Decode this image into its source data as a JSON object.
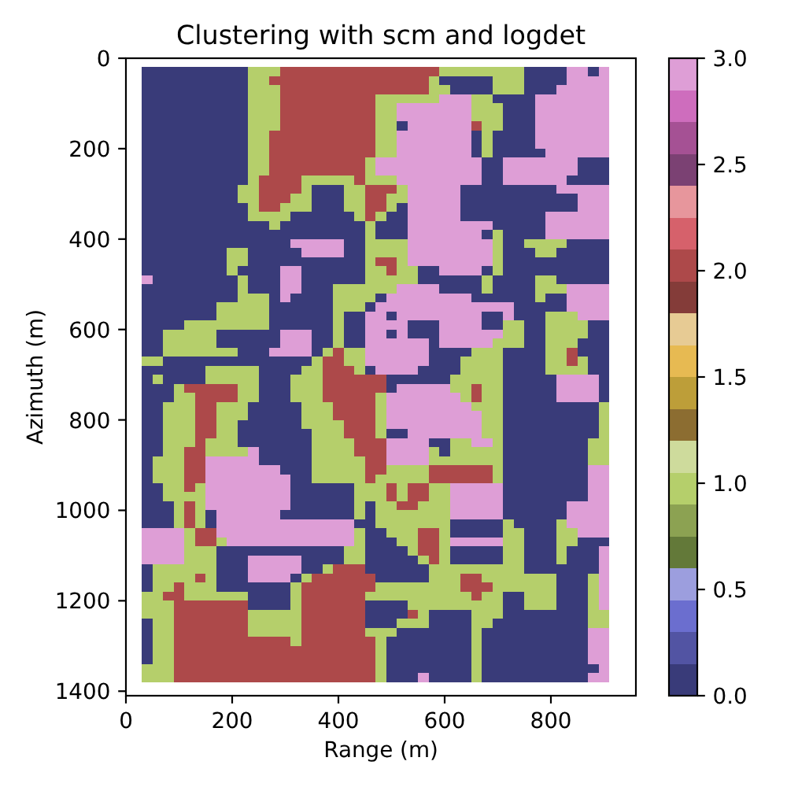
{
  "chart_data": {
    "type": "heatmap",
    "title": "Clustering with scm and logdet",
    "xlabel": "Range (m)",
    "ylabel": "Azimuth (m)",
    "x": [
      40,
      60,
      80,
      100,
      120,
      140,
      160,
      180,
      200,
      220,
      240,
      260,
      280,
      300,
      320,
      340,
      360,
      380,
      400,
      420,
      440,
      460,
      480,
      500,
      520,
      540,
      560,
      580,
      600,
      620,
      640,
      660,
      680,
      700,
      720,
      740,
      760,
      780,
      800,
      820,
      840,
      860,
      880,
      900
    ],
    "y": [
      30,
      50,
      70,
      90,
      110,
      130,
      150,
      170,
      190,
      210,
      230,
      250,
      270,
      290,
      310,
      330,
      350,
      370,
      390,
      410,
      430,
      450,
      470,
      490,
      510,
      530,
      550,
      570,
      590,
      610,
      630,
      650,
      670,
      690,
      710,
      730,
      750,
      770,
      790,
      810,
      830,
      850,
      870,
      890,
      910,
      930,
      950,
      970,
      990,
      1010,
      1030,
      1050,
      1070,
      1090,
      1110,
      1130,
      1150,
      1170,
      1190,
      1210,
      1230,
      1250,
      1270,
      1290,
      1310,
      1330,
      1350,
      1370
    ],
    "cells": [
      [
        0,
        0,
        0,
        0,
        0,
        0,
        0,
        0,
        0,
        0,
        1,
        1,
        1,
        2,
        2,
        2,
        2,
        2,
        2,
        2,
        2,
        2,
        2,
        2,
        2,
        2,
        2,
        2,
        1,
        1,
        1,
        1,
        1,
        1,
        1,
        1,
        0,
        0,
        0,
        0,
        3,
        3,
        0,
        3
      ],
      [
        0,
        0,
        0,
        0,
        0,
        0,
        0,
        0,
        0,
        0,
        1,
        1,
        2,
        2,
        2,
        2,
        2,
        2,
        2,
        2,
        2,
        2,
        2,
        2,
        2,
        2,
        2,
        1,
        0,
        0,
        0,
        0,
        0,
        1,
        1,
        1,
        0,
        0,
        0,
        0,
        3,
        3,
        3,
        3
      ],
      [
        0,
        0,
        0,
        0,
        0,
        0,
        0,
        0,
        0,
        0,
        1,
        1,
        1,
        2,
        2,
        2,
        2,
        2,
        2,
        2,
        2,
        2,
        2,
        2,
        2,
        2,
        2,
        1,
        1,
        0,
        0,
        0,
        0,
        1,
        1,
        1,
        0,
        0,
        0,
        3,
        3,
        3,
        3,
        3
      ],
      [
        0,
        0,
        0,
        0,
        0,
        0,
        0,
        0,
        0,
        0,
        1,
        1,
        1,
        2,
        2,
        2,
        2,
        2,
        2,
        2,
        2,
        2,
        1,
        1,
        1,
        1,
        1,
        1,
        3,
        3,
        3,
        1,
        1,
        0,
        0,
        0,
        0,
        3,
        3,
        3,
        3,
        3,
        3,
        3
      ],
      [
        0,
        0,
        0,
        0,
        0,
        0,
        0,
        0,
        0,
        0,
        1,
        1,
        1,
        2,
        2,
        2,
        2,
        2,
        2,
        2,
        2,
        2,
        1,
        1,
        3,
        3,
        3,
        3,
        3,
        3,
        3,
        1,
        1,
        1,
        0,
        0,
        0,
        3,
        3,
        3,
        3,
        3,
        3,
        3
      ],
      [
        0,
        0,
        0,
        0,
        0,
        0,
        0,
        0,
        0,
        0,
        1,
        1,
        1,
        2,
        2,
        2,
        2,
        2,
        2,
        2,
        2,
        2,
        1,
        1,
        3,
        3,
        3,
        3,
        3,
        3,
        3,
        1,
        1,
        1,
        0,
        0,
        0,
        3,
        3,
        3,
        3,
        3,
        3,
        3
      ],
      [
        0,
        0,
        0,
        0,
        0,
        0,
        0,
        0,
        0,
        0,
        1,
        1,
        1,
        2,
        2,
        2,
        2,
        2,
        2,
        2,
        2,
        2,
        1,
        1,
        0,
        3,
        3,
        3,
        3,
        3,
        3,
        2,
        1,
        1,
        0,
        0,
        0,
        3,
        3,
        3,
        3,
        3,
        3,
        3
      ],
      [
        0,
        0,
        0,
        0,
        0,
        0,
        0,
        0,
        0,
        0,
        1,
        1,
        2,
        2,
        2,
        2,
        2,
        2,
        2,
        2,
        2,
        2,
        1,
        1,
        3,
        3,
        3,
        3,
        3,
        3,
        3,
        0,
        1,
        0,
        0,
        0,
        0,
        3,
        3,
        3,
        3,
        3,
        3,
        3
      ],
      [
        0,
        0,
        0,
        0,
        0,
        0,
        0,
        0,
        0,
        0,
        1,
        1,
        2,
        2,
        2,
        2,
        2,
        2,
        2,
        2,
        2,
        2,
        1,
        1,
        3,
        3,
        3,
        3,
        3,
        3,
        3,
        0,
        1,
        0,
        0,
        0,
        0,
        3,
        3,
        3,
        3,
        3,
        3,
        3
      ],
      [
        0,
        0,
        0,
        0,
        0,
        0,
        0,
        0,
        0,
        0,
        1,
        1,
        2,
        2,
        2,
        2,
        2,
        2,
        2,
        2,
        2,
        2,
        1,
        1,
        3,
        3,
        3,
        3,
        3,
        3,
        3,
        0,
        1,
        0,
        0,
        0,
        0,
        0,
        3,
        3,
        3,
        3,
        3,
        3
      ],
      [
        0,
        0,
        0,
        0,
        0,
        0,
        0,
        0,
        0,
        0,
        1,
        1,
        2,
        2,
        2,
        2,
        2,
        2,
        2,
        2,
        2,
        1,
        3,
        3,
        3,
        3,
        3,
        3,
        3,
        3,
        3,
        3,
        0,
        0,
        3,
        3,
        3,
        3,
        3,
        3,
        3,
        0,
        0,
        0
      ],
      [
        0,
        0,
        0,
        0,
        0,
        0,
        0,
        0,
        0,
        0,
        1,
        1,
        2,
        2,
        2,
        2,
        2,
        2,
        2,
        2,
        2,
        1,
        3,
        3,
        3,
        3,
        3,
        3,
        3,
        3,
        3,
        3,
        0,
        0,
        3,
        3,
        3,
        3,
        3,
        3,
        3,
        0,
        0,
        0
      ],
      [
        0,
        0,
        0,
        0,
        0,
        0,
        0,
        0,
        0,
        0,
        1,
        2,
        2,
        2,
        2,
        1,
        1,
        1,
        1,
        1,
        2,
        1,
        1,
        1,
        3,
        3,
        3,
        3,
        3,
        3,
        3,
        3,
        0,
        0,
        3,
        3,
        3,
        3,
        3,
        3,
        0,
        0,
        0,
        0
      ],
      [
        0,
        0,
        0,
        0,
        0,
        0,
        0,
        0,
        0,
        1,
        1,
        2,
        2,
        2,
        2,
        1,
        0,
        0,
        0,
        1,
        1,
        2,
        2,
        2,
        1,
        3,
        3,
        3,
        3,
        3,
        0,
        0,
        0,
        0,
        0,
        0,
        0,
        0,
        0,
        3,
        3,
        3,
        3,
        3
      ],
      [
        0,
        0,
        0,
        0,
        0,
        0,
        0,
        0,
        0,
        1,
        1,
        2,
        2,
        2,
        1,
        1,
        0,
        0,
        0,
        1,
        1,
        2,
        2,
        1,
        1,
        3,
        3,
        3,
        3,
        3,
        0,
        0,
        0,
        0,
        0,
        0,
        0,
        0,
        0,
        0,
        0,
        3,
        3,
        3
      ],
      [
        0,
        0,
        0,
        0,
        0,
        0,
        0,
        0,
        0,
        0,
        1,
        2,
        2,
        1,
        1,
        1,
        0,
        0,
        0,
        1,
        1,
        2,
        2,
        1,
        0,
        3,
        3,
        3,
        3,
        3,
        0,
        0,
        0,
        0,
        0,
        0,
        0,
        0,
        0,
        0,
        0,
        3,
        3,
        3
      ],
      [
        0,
        0,
        0,
        0,
        0,
        0,
        0,
        0,
        0,
        0,
        1,
        1,
        1,
        1,
        0,
        0,
        0,
        0,
        0,
        0,
        1,
        2,
        1,
        0,
        0,
        3,
        3,
        3,
        3,
        3,
        0,
        0,
        0,
        0,
        0,
        0,
        0,
        0,
        3,
        3,
        3,
        3,
        3,
        3
      ],
      [
        0,
        0,
        0,
        0,
        0,
        0,
        0,
        0,
        0,
        0,
        0,
        0,
        1,
        0,
        0,
        0,
        0,
        0,
        0,
        0,
        0,
        1,
        0,
        0,
        0,
        3,
        3,
        3,
        3,
        3,
        3,
        3,
        3,
        0,
        0,
        0,
        0,
        0,
        3,
        3,
        3,
        3,
        3,
        3
      ],
      [
        0,
        0,
        0,
        0,
        0,
        0,
        0,
        0,
        0,
        0,
        0,
        0,
        0,
        0,
        0,
        0,
        0,
        0,
        0,
        0,
        0,
        1,
        0,
        0,
        0,
        3,
        3,
        3,
        3,
        3,
        3,
        3,
        0,
        1,
        0,
        0,
        0,
        0,
        3,
        3,
        3,
        3,
        3,
        3
      ],
      [
        0,
        0,
        0,
        0,
        0,
        0,
        0,
        0,
        0,
        0,
        0,
        0,
        0,
        0,
        3,
        3,
        3,
        3,
        3,
        0,
        0,
        1,
        1,
        1,
        1,
        3,
        3,
        3,
        3,
        3,
        3,
        3,
        3,
        1,
        0,
        0,
        1,
        1,
        1,
        1,
        0,
        0,
        0,
        0
      ],
      [
        0,
        0,
        0,
        0,
        0,
        0,
        0,
        0,
        1,
        1,
        0,
        0,
        0,
        0,
        0,
        3,
        3,
        3,
        3,
        0,
        0,
        1,
        1,
        1,
        1,
        3,
        3,
        3,
        3,
        3,
        3,
        3,
        3,
        1,
        0,
        0,
        0,
        1,
        1,
        0,
        0,
        0,
        0,
        0
      ],
      [
        0,
        0,
        0,
        0,
        0,
        0,
        0,
        0,
        1,
        1,
        0,
        0,
        0,
        0,
        0,
        0,
        0,
        0,
        0,
        0,
        0,
        1,
        2,
        2,
        1,
        3,
        3,
        3,
        3,
        3,
        3,
        3,
        3,
        1,
        0,
        0,
        0,
        0,
        0,
        0,
        0,
        0,
        0,
        0
      ],
      [
        0,
        0,
        0,
        0,
        0,
        0,
        0,
        0,
        1,
        0,
        0,
        0,
        0,
        3,
        3,
        0,
        0,
        0,
        0,
        0,
        0,
        1,
        1,
        2,
        1,
        1,
        0,
        0,
        3,
        3,
        3,
        3,
        0,
        1,
        0,
        0,
        0,
        0,
        0,
        0,
        0,
        0,
        0,
        0
      ],
      [
        3,
        0,
        0,
        0,
        0,
        0,
        0,
        0,
        0,
        1,
        0,
        0,
        0,
        3,
        3,
        0,
        0,
        0,
        0,
        0,
        0,
        1,
        1,
        1,
        1,
        1,
        0,
        0,
        0,
        0,
        0,
        0,
        1,
        0,
        0,
        0,
        0,
        1,
        1,
        0,
        0,
        0,
        0,
        0
      ],
      [
        0,
        0,
        0,
        0,
        0,
        0,
        0,
        0,
        0,
        1,
        0,
        0,
        0,
        3,
        3,
        0,
        0,
        0,
        1,
        1,
        1,
        1,
        1,
        1,
        3,
        3,
        3,
        3,
        0,
        0,
        0,
        0,
        1,
        0,
        0,
        0,
        0,
        1,
        1,
        1,
        3,
        3,
        3,
        3
      ],
      [
        0,
        0,
        0,
        0,
        0,
        0,
        0,
        0,
        0,
        1,
        1,
        1,
        0,
        3,
        0,
        0,
        0,
        0,
        1,
        1,
        1,
        1,
        0,
        3,
        3,
        3,
        3,
        3,
        3,
        3,
        3,
        0,
        0,
        0,
        0,
        0,
        0,
        1,
        0,
        0,
        3,
        3,
        3,
        3
      ],
      [
        0,
        0,
        0,
        0,
        0,
        0,
        0,
        1,
        1,
        1,
        1,
        1,
        0,
        0,
        0,
        0,
        0,
        0,
        1,
        1,
        1,
        0,
        3,
        3,
        3,
        3,
        3,
        3,
        3,
        3,
        3,
        3,
        3,
        3,
        3,
        0,
        0,
        0,
        0,
        0,
        3,
        3,
        3,
        3
      ],
      [
        0,
        0,
        0,
        0,
        0,
        0,
        0,
        1,
        1,
        1,
        1,
        1,
        0,
        0,
        0,
        0,
        0,
        0,
        1,
        0,
        0,
        3,
        3,
        0,
        3,
        3,
        3,
        3,
        3,
        3,
        3,
        3,
        0,
        0,
        3,
        0,
        0,
        0,
        1,
        1,
        1,
        3,
        3,
        3
      ],
      [
        0,
        0,
        0,
        0,
        1,
        1,
        1,
        1,
        1,
        1,
        1,
        1,
        0,
        0,
        0,
        0,
        0,
        0,
        1,
        0,
        0,
        3,
        3,
        3,
        3,
        0,
        0,
        0,
        3,
        3,
        3,
        3,
        0,
        0,
        1,
        1,
        0,
        0,
        1,
        1,
        1,
        1,
        0,
        0
      ],
      [
        0,
        0,
        1,
        1,
        1,
        1,
        1,
        0,
        0,
        0,
        0,
        0,
        0,
        3,
        3,
        3,
        0,
        0,
        1,
        0,
        0,
        3,
        3,
        0,
        3,
        0,
        0,
        0,
        3,
        3,
        3,
        3,
        3,
        3,
        1,
        1,
        0,
        0,
        1,
        1,
        1,
        1,
        0,
        0
      ],
      [
        0,
        0,
        1,
        1,
        1,
        1,
        1,
        0,
        0,
        0,
        0,
        0,
        0,
        3,
        3,
        3,
        0,
        0,
        1,
        0,
        0,
        3,
        3,
        3,
        3,
        3,
        3,
        0,
        3,
        3,
        3,
        3,
        3,
        1,
        1,
        1,
        0,
        0,
        1,
        1,
        1,
        0,
        0,
        0
      ],
      [
        0,
        0,
        1,
        1,
        1,
        1,
        1,
        1,
        1,
        0,
        0,
        0,
        3,
        3,
        3,
        3,
        0,
        1,
        2,
        1,
        1,
        3,
        3,
        3,
        3,
        3,
        3,
        0,
        0,
        0,
        0,
        1,
        1,
        1,
        0,
        0,
        0,
        0,
        1,
        1,
        2,
        0,
        0,
        0
      ],
      [
        1,
        1,
        0,
        0,
        0,
        0,
        0,
        0,
        0,
        0,
        0,
        0,
        0,
        0,
        0,
        0,
        1,
        2,
        2,
        1,
        1,
        3,
        3,
        3,
        3,
        3,
        3,
        0,
        0,
        0,
        1,
        1,
        1,
        1,
        0,
        0,
        0,
        0,
        1,
        1,
        2,
        1,
        0,
        0
      ],
      [
        0,
        0,
        0,
        0,
        0,
        0,
        1,
        1,
        1,
        1,
        1,
        0,
        0,
        0,
        0,
        1,
        1,
        2,
        2,
        2,
        1,
        0,
        3,
        3,
        3,
        3,
        0,
        0,
        0,
        0,
        1,
        1,
        1,
        1,
        0,
        0,
        0,
        0,
        1,
        1,
        1,
        1,
        0,
        0
      ],
      [
        0,
        1,
        0,
        0,
        0,
        0,
        1,
        1,
        1,
        1,
        1,
        0,
        0,
        0,
        1,
        1,
        1,
        2,
        2,
        2,
        2,
        2,
        2,
        0,
        0,
        0,
        0,
        0,
        0,
        1,
        1,
        1,
        1,
        1,
        0,
        0,
        0,
        0,
        0,
        3,
        3,
        3,
        3,
        0
      ],
      [
        0,
        0,
        0,
        1,
        2,
        2,
        2,
        2,
        2,
        1,
        1,
        0,
        0,
        0,
        1,
        1,
        1,
        2,
        2,
        2,
        2,
        2,
        2,
        0,
        3,
        3,
        3,
        3,
        3,
        1,
        1,
        2,
        1,
        1,
        0,
        0,
        0,
        0,
        0,
        3,
        3,
        3,
        3,
        0
      ],
      [
        0,
        0,
        0,
        1,
        1,
        2,
        2,
        2,
        2,
        1,
        1,
        0,
        0,
        0,
        1,
        1,
        1,
        2,
        2,
        2,
        2,
        2,
        1,
        3,
        3,
        3,
        3,
        3,
        3,
        3,
        1,
        2,
        1,
        1,
        0,
        0,
        0,
        0,
        0,
        3,
        3,
        3,
        3,
        0
      ],
      [
        0,
        0,
        1,
        1,
        1,
        2,
        2,
        1,
        1,
        1,
        0,
        0,
        0,
        0,
        0,
        1,
        1,
        1,
        2,
        2,
        2,
        2,
        1,
        3,
        3,
        3,
        3,
        3,
        3,
        3,
        3,
        1,
        1,
        1,
        0,
        0,
        0,
        0,
        0,
        0,
        0,
        0,
        0,
        1
      ],
      [
        0,
        0,
        1,
        1,
        1,
        2,
        2,
        1,
        1,
        1,
        0,
        0,
        0,
        0,
        0,
        1,
        1,
        1,
        2,
        2,
        2,
        2,
        1,
        3,
        3,
        3,
        3,
        3,
        3,
        3,
        3,
        3,
        1,
        1,
        0,
        0,
        0,
        0,
        0,
        0,
        0,
        0,
        0,
        1
      ],
      [
        0,
        0,
        1,
        1,
        1,
        2,
        2,
        1,
        1,
        0,
        0,
        0,
        0,
        0,
        0,
        1,
        1,
        1,
        1,
        2,
        2,
        2,
        1,
        3,
        3,
        3,
        3,
        3,
        3,
        3,
        3,
        3,
        1,
        1,
        0,
        0,
        0,
        0,
        0,
        0,
        0,
        0,
        0,
        1
      ],
      [
        0,
        0,
        1,
        1,
        1,
        2,
        2,
        1,
        1,
        0,
        0,
        0,
        0,
        0,
        0,
        0,
        1,
        1,
        1,
        2,
        2,
        2,
        1,
        0,
        0,
        3,
        3,
        3,
        3,
        3,
        3,
        3,
        1,
        1,
        0,
        0,
        0,
        0,
        0,
        0,
        0,
        0,
        0,
        1
      ],
      [
        0,
        0,
        1,
        1,
        1,
        2,
        1,
        1,
        1,
        0,
        0,
        0,
        0,
        0,
        0,
        0,
        1,
        1,
        1,
        1,
        2,
        2,
        2,
        3,
        3,
        3,
        3,
        0,
        0,
        1,
        1,
        3,
        3,
        1,
        0,
        0,
        0,
        0,
        0,
        0,
        0,
        0,
        1,
        1
      ],
      [
        0,
        0,
        1,
        1,
        2,
        2,
        1,
        1,
        1,
        1,
        3,
        0,
        0,
        0,
        0,
        0,
        1,
        1,
        1,
        1,
        2,
        2,
        2,
        3,
        3,
        3,
        3,
        1,
        0,
        1,
        1,
        1,
        1,
        1,
        0,
        0,
        0,
        0,
        0,
        0,
        0,
        0,
        1,
        1
      ],
      [
        0,
        1,
        1,
        1,
        2,
        2,
        3,
        3,
        3,
        3,
        3,
        0,
        0,
        0,
        0,
        0,
        1,
        1,
        1,
        1,
        1,
        2,
        2,
        3,
        3,
        3,
        3,
        1,
        1,
        1,
        1,
        1,
        1,
        1,
        0,
        0,
        0,
        0,
        0,
        0,
        0,
        0,
        1,
        1
      ],
      [
        0,
        1,
        1,
        1,
        2,
        2,
        3,
        3,
        3,
        3,
        3,
        3,
        3,
        0,
        0,
        0,
        1,
        1,
        1,
        1,
        1,
        2,
        2,
        1,
        1,
        1,
        1,
        2,
        2,
        2,
        2,
        2,
        2,
        1,
        0,
        0,
        0,
        0,
        0,
        0,
        0,
        0,
        3,
        3
      ],
      [
        0,
        1,
        1,
        1,
        2,
        2,
        3,
        3,
        3,
        3,
        3,
        3,
        3,
        3,
        0,
        0,
        1,
        1,
        1,
        1,
        1,
        2,
        1,
        1,
        1,
        1,
        1,
        2,
        2,
        2,
        2,
        2,
        2,
        1,
        0,
        0,
        0,
        0,
        0,
        0,
        0,
        0,
        3,
        3
      ],
      [
        0,
        0,
        1,
        1,
        2,
        1,
        3,
        3,
        3,
        3,
        3,
        3,
        3,
        3,
        0,
        0,
        0,
        0,
        0,
        0,
        1,
        1,
        1,
        2,
        1,
        2,
        2,
        1,
        1,
        3,
        3,
        3,
        3,
        3,
        0,
        0,
        0,
        0,
        0,
        0,
        0,
        0,
        3,
        3
      ],
      [
        0,
        0,
        1,
        1,
        1,
        1,
        3,
        3,
        3,
        3,
        3,
        3,
        3,
        3,
        0,
        0,
        0,
        0,
        0,
        0,
        1,
        1,
        1,
        2,
        1,
        2,
        2,
        1,
        1,
        3,
        3,
        3,
        3,
        3,
        0,
        0,
        0,
        0,
        0,
        0,
        0,
        0,
        3,
        3
      ],
      [
        0,
        0,
        0,
        1,
        2,
        1,
        3,
        3,
        3,
        3,
        3,
        3,
        3,
        3,
        0,
        0,
        0,
        0,
        0,
        0,
        1,
        0,
        1,
        1,
        2,
        2,
        1,
        1,
        1,
        3,
        3,
        3,
        3,
        3,
        0,
        0,
        0,
        0,
        0,
        0,
        3,
        3,
        3,
        3
      ],
      [
        0,
        0,
        0,
        1,
        2,
        1,
        0,
        3,
        3,
        3,
        3,
        3,
        3,
        0,
        0,
        0,
        0,
        0,
        0,
        0,
        1,
        0,
        1,
        1,
        1,
        1,
        1,
        1,
        1,
        3,
        3,
        3,
        3,
        3,
        0,
        0,
        0,
        0,
        0,
        0,
        3,
        3,
        3,
        3
      ],
      [
        0,
        0,
        0,
        1,
        2,
        1,
        0,
        3,
        3,
        3,
        3,
        3,
        3,
        3,
        3,
        3,
        3,
        3,
        3,
        3,
        0,
        0,
        1,
        1,
        1,
        1,
        1,
        1,
        1,
        0,
        0,
        0,
        0,
        0,
        1,
        0,
        0,
        0,
        0,
        1,
        3,
        3,
        3,
        3
      ],
      [
        3,
        3,
        3,
        3,
        1,
        2,
        2,
        3,
        3,
        3,
        3,
        3,
        3,
        3,
        3,
        3,
        3,
        3,
        3,
        3,
        1,
        0,
        0,
        1,
        1,
        1,
        2,
        2,
        1,
        0,
        0,
        0,
        0,
        0,
        1,
        1,
        0,
        0,
        0,
        1,
        1,
        3,
        3,
        3
      ],
      [
        3,
        3,
        3,
        3,
        1,
        2,
        2,
        1,
        3,
        3,
        3,
        3,
        3,
        3,
        3,
        3,
        3,
        3,
        3,
        3,
        1,
        0,
        0,
        0,
        1,
        1,
        2,
        2,
        1,
        3,
        3,
        3,
        3,
        3,
        1,
        1,
        0,
        0,
        0,
        1,
        1,
        0,
        0,
        0
      ],
      [
        3,
        3,
        3,
        3,
        1,
        1,
        1,
        0,
        0,
        0,
        0,
        0,
        0,
        0,
        0,
        0,
        0,
        0,
        0,
        1,
        1,
        0,
        0,
        0,
        0,
        1,
        2,
        2,
        1,
        0,
        0,
        0,
        0,
        0,
        1,
        1,
        0,
        0,
        0,
        1,
        0,
        0,
        0,
        3
      ],
      [
        3,
        3,
        3,
        3,
        1,
        1,
        1,
        0,
        0,
        0,
        3,
        3,
        3,
        3,
        3,
        0,
        0,
        0,
        0,
        1,
        1,
        0,
        0,
        0,
        0,
        0,
        1,
        2,
        1,
        0,
        0,
        0,
        0,
        0,
        1,
        1,
        0,
        0,
        0,
        1,
        0,
        0,
        0,
        3
      ],
      [
        0,
        1,
        1,
        1,
        1,
        1,
        1,
        0,
        0,
        0,
        3,
        3,
        3,
        3,
        3,
        0,
        0,
        1,
        2,
        2,
        2,
        0,
        0,
        0,
        0,
        0,
        0,
        1,
        1,
        1,
        1,
        1,
        1,
        1,
        1,
        1,
        0,
        0,
        0,
        0,
        0,
        0,
        0,
        3
      ],
      [
        0,
        1,
        1,
        1,
        1,
        2,
        1,
        0,
        0,
        0,
        3,
        3,
        3,
        3,
        0,
        1,
        2,
        2,
        2,
        2,
        2,
        2,
        0,
        0,
        0,
        0,
        0,
        1,
        1,
        1,
        2,
        2,
        1,
        1,
        1,
        1,
        1,
        1,
        1,
        0,
        0,
        0,
        1,
        3
      ],
      [
        0,
        1,
        1,
        2,
        1,
        1,
        1,
        0,
        0,
        0,
        0,
        0,
        0,
        0,
        1,
        2,
        2,
        2,
        2,
        2,
        2,
        2,
        1,
        1,
        1,
        1,
        1,
        1,
        1,
        1,
        2,
        2,
        2,
        1,
        1,
        1,
        1,
        1,
        1,
        0,
        0,
        0,
        1,
        3
      ],
      [
        1,
        1,
        2,
        2,
        1,
        1,
        1,
        1,
        1,
        1,
        0,
        0,
        0,
        0,
        1,
        2,
        2,
        2,
        2,
        2,
        2,
        1,
        1,
        1,
        1,
        1,
        1,
        1,
        1,
        1,
        1,
        2,
        1,
        1,
        0,
        0,
        1,
        1,
        1,
        0,
        0,
        0,
        1,
        3
      ],
      [
        1,
        1,
        1,
        2,
        2,
        2,
        2,
        2,
        2,
        2,
        0,
        0,
        0,
        0,
        1,
        2,
        2,
        2,
        2,
        2,
        2,
        0,
        0,
        0,
        0,
        1,
        1,
        1,
        1,
        1,
        1,
        1,
        1,
        1,
        0,
        0,
        1,
        1,
        1,
        0,
        0,
        0,
        1,
        3
      ],
      [
        1,
        1,
        1,
        2,
        2,
        2,
        2,
        2,
        2,
        2,
        1,
        1,
        1,
        1,
        1,
        2,
        2,
        2,
        2,
        2,
        2,
        0,
        0,
        0,
        0,
        2,
        1,
        0,
        0,
        0,
        0,
        1,
        1,
        1,
        0,
        0,
        0,
        0,
        0,
        0,
        0,
        0,
        1,
        1
      ],
      [
        0,
        1,
        1,
        2,
        2,
        2,
        2,
        2,
        2,
        2,
        1,
        1,
        1,
        1,
        1,
        2,
        2,
        2,
        2,
        2,
        2,
        0,
        0,
        0,
        1,
        1,
        1,
        0,
        0,
        0,
        0,
        1,
        1,
        0,
        0,
        0,
        0,
        0,
        0,
        0,
        0,
        0,
        1,
        1
      ],
      [
        0,
        1,
        1,
        2,
        2,
        2,
        2,
        2,
        2,
        2,
        1,
        1,
        1,
        1,
        1,
        2,
        2,
        2,
        2,
        2,
        2,
        1,
        1,
        1,
        0,
        0,
        0,
        0,
        0,
        0,
        0,
        1,
        0,
        0,
        0,
        0,
        0,
        0,
        0,
        0,
        0,
        0,
        3,
        3
      ],
      [
        0,
        1,
        1,
        2,
        2,
        2,
        2,
        2,
        2,
        2,
        2,
        2,
        2,
        2,
        1,
        2,
        2,
        2,
        2,
        2,
        2,
        2,
        1,
        0,
        0,
        0,
        0,
        0,
        0,
        0,
        0,
        1,
        0,
        0,
        0,
        0,
        0,
        0,
        0,
        0,
        0,
        0,
        3,
        3
      ],
      [
        0,
        1,
        1,
        2,
        2,
        2,
        2,
        2,
        2,
        2,
        2,
        2,
        2,
        2,
        2,
        2,
        2,
        2,
        2,
        2,
        2,
        2,
        1,
        0,
        0,
        0,
        0,
        0,
        0,
        0,
        0,
        1,
        0,
        0,
        0,
        0,
        0,
        0,
        0,
        0,
        0,
        0,
        3,
        3
      ],
      [
        0,
        1,
        1,
        2,
        2,
        2,
        2,
        2,
        2,
        2,
        2,
        2,
        2,
        2,
        2,
        2,
        2,
        2,
        2,
        2,
        2,
        2,
        1,
        0,
        0,
        0,
        0,
        0,
        0,
        0,
        0,
        1,
        0,
        0,
        0,
        0,
        0,
        0,
        0,
        0,
        0,
        0,
        3,
        3
      ],
      [
        1,
        1,
        1,
        2,
        2,
        2,
        2,
        2,
        2,
        2,
        2,
        2,
        2,
        2,
        2,
        2,
        2,
        2,
        2,
        2,
        2,
        2,
        1,
        0,
        0,
        0,
        0,
        0,
        0,
        0,
        0,
        1,
        0,
        0,
        0,
        0,
        0,
        0,
        0,
        0,
        0,
        0,
        0,
        3
      ],
      [
        1,
        1,
        1,
        2,
        2,
        2,
        2,
        2,
        2,
        2,
        2,
        2,
        2,
        2,
        2,
        2,
        2,
        2,
        2,
        2,
        2,
        2,
        1,
        0,
        0,
        0,
        3,
        0,
        0,
        0,
        0,
        1,
        0,
        0,
        0,
        0,
        0,
        0,
        0,
        0,
        0,
        0,
        3,
        3
      ]
    ],
    "xlim": [
      0,
      960
    ],
    "ylim": [
      1410,
      0
    ],
    "xticks": [
      0,
      200,
      400,
      600,
      800
    ],
    "yticks": [
      0,
      200,
      400,
      600,
      800,
      1000,
      1200,
      1400
    ],
    "clim": [
      0,
      3
    ],
    "cticks": [
      {
        "value": 0,
        "label": "0.0"
      },
      {
        "value": 0.5,
        "label": "0.5"
      },
      {
        "value": 1,
        "label": "1.0"
      },
      {
        "value": 1.5,
        "label": "1.5"
      },
      {
        "value": 2,
        "label": "2.0"
      },
      {
        "value": 2.5,
        "label": "2.5"
      },
      {
        "value": 3,
        "label": "3.0"
      }
    ]
  }
}
